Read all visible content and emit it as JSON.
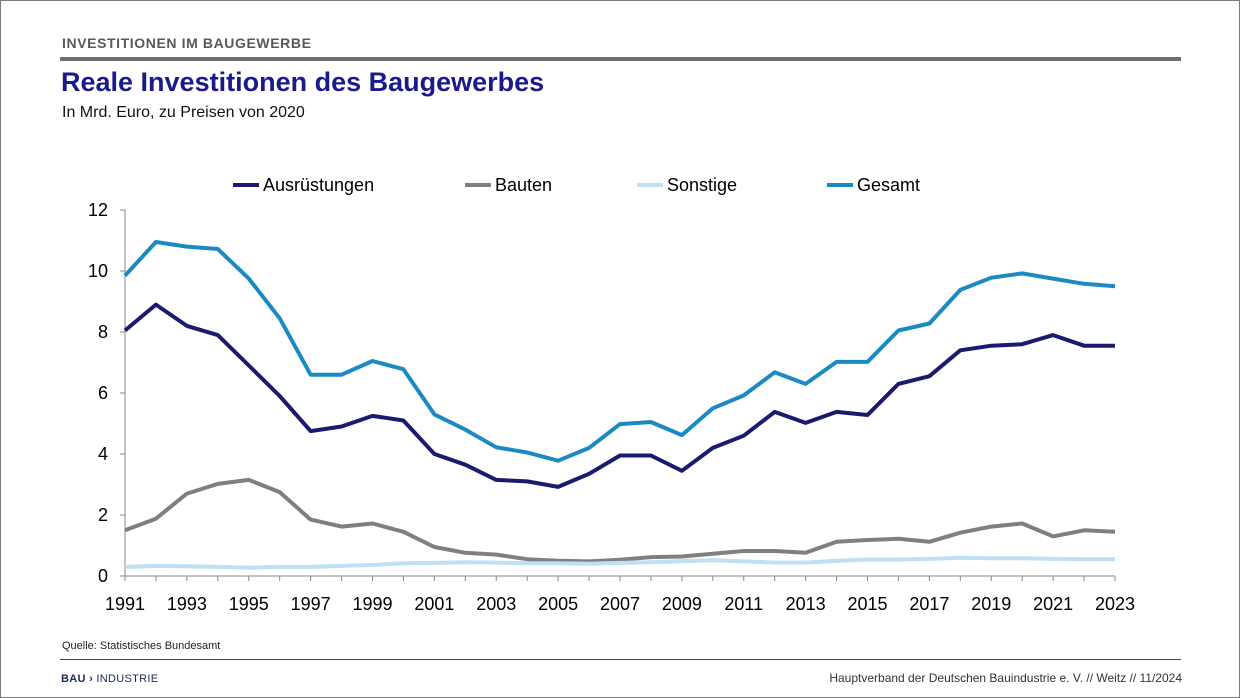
{
  "header": {
    "section": "INVESTITIONEN IM BAUGEWERBE",
    "title": "Reale Investitionen des Baugewerbes",
    "subtitle": "In Mrd. Euro, zu Preisen von 2020"
  },
  "footer": {
    "source": "Quelle: Statistisches Bundesamt",
    "logo_bold": "BAU",
    "logo_rest": "INDUSTRIE",
    "credit": "Hauptverband der Deutschen Bauindustrie e. V.  //  Weitz  // 11/2024"
  },
  "chart_data": {
    "type": "line",
    "title": "Reale Investitionen des Baugewerbes",
    "subtitle": "In Mrd. Euro, zu Preisen von 2020",
    "x": [
      1991,
      1992,
      1993,
      1994,
      1995,
      1996,
      1997,
      1998,
      1999,
      2000,
      2001,
      2002,
      2003,
      2004,
      2005,
      2006,
      2007,
      2008,
      2009,
      2010,
      2011,
      2012,
      2013,
      2014,
      2015,
      2016,
      2017,
      2018,
      2019,
      2020,
      2021,
      2022,
      2023
    ],
    "x_tick_labels": [
      "1991",
      "1993",
      "1995",
      "1997",
      "1999",
      "2001",
      "2003",
      "2005",
      "2007",
      "2009",
      "2011",
      "2013",
      "2015",
      "2017",
      "2019",
      "2021",
      "2023"
    ],
    "ylim": [
      0,
      12
    ],
    "y_ticks": [
      "0",
      "2",
      "4",
      "6",
      "8",
      "10",
      "12"
    ],
    "grid": false,
    "legend_position": "top",
    "series": [
      {
        "name": "Ausrüstungen",
        "color": "#1a1a6e",
        "values": [
          8.05,
          8.9,
          8.2,
          7.9,
          6.9,
          5.9,
          4.75,
          4.9,
          5.25,
          5.1,
          4.0,
          3.65,
          3.15,
          3.1,
          2.92,
          3.35,
          3.95,
          3.95,
          3.45,
          4.2,
          4.6,
          5.38,
          5.02,
          5.38,
          5.28,
          6.3,
          6.55,
          7.4,
          7.55,
          7.6,
          7.9,
          7.55,
          7.55
        ]
      },
      {
        "name": "Bauten",
        "color": "#7f7f7f",
        "values": [
          1.5,
          1.88,
          2.7,
          3.02,
          3.15,
          2.75,
          1.85,
          1.62,
          1.72,
          1.45,
          0.95,
          0.76,
          0.7,
          0.55,
          0.5,
          0.48,
          0.53,
          0.62,
          0.64,
          0.73,
          0.82,
          0.82,
          0.76,
          1.12,
          1.18,
          1.22,
          1.12,
          1.42,
          1.62,
          1.72,
          1.3,
          1.5,
          1.45
        ]
      },
      {
        "name": "Sonstige",
        "color": "#bde0f3",
        "values": [
          0.3,
          0.33,
          0.32,
          0.3,
          0.27,
          0.3,
          0.3,
          0.33,
          0.36,
          0.42,
          0.43,
          0.45,
          0.44,
          0.42,
          0.42,
          0.4,
          0.43,
          0.45,
          0.49,
          0.52,
          0.48,
          0.44,
          0.44,
          0.5,
          0.54,
          0.54,
          0.56,
          0.6,
          0.58,
          0.58,
          0.56,
          0.55,
          0.55
        ]
      },
      {
        "name": "Gesamt",
        "color": "#1b8ac2",
        "values": [
          9.85,
          10.95,
          10.8,
          10.72,
          9.75,
          8.45,
          6.6,
          6.6,
          7.05,
          6.78,
          5.3,
          4.8,
          4.22,
          4.05,
          3.78,
          4.2,
          4.98,
          5.05,
          4.62,
          5.5,
          5.92,
          6.68,
          6.3,
          7.02,
          7.02,
          8.05,
          8.28,
          9.38,
          9.78,
          9.92,
          9.75,
          9.58,
          9.5
        ]
      }
    ]
  }
}
